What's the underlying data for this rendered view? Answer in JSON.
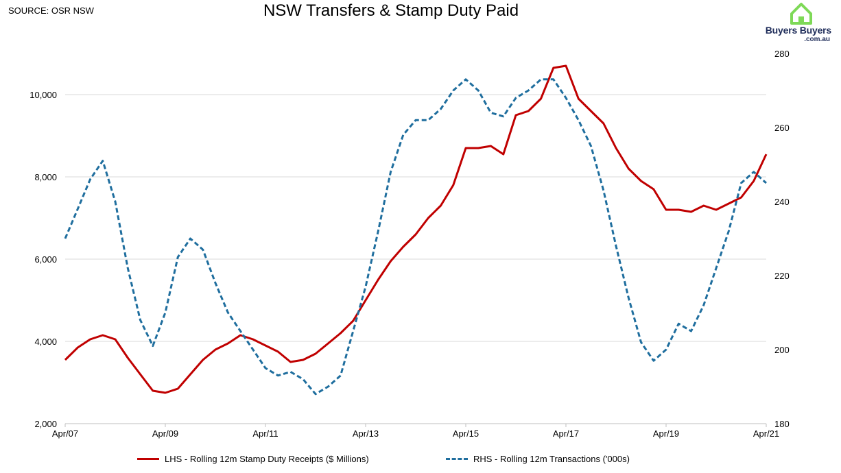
{
  "source": "SOURCE: OSR NSW",
  "title": "NSW Transfers & Stamp Duty Paid",
  "logo": {
    "name": "Buyers Buyers",
    "sub": ".com.au",
    "colors": {
      "house": "#7ed957",
      "text": "#1f2d5a"
    }
  },
  "chart_data": {
    "type": "line",
    "grid": "horizontal",
    "legend_position": "bottom",
    "x_ticks": [
      "Apr/07",
      "Apr/09",
      "Apr/11",
      "Apr/13",
      "Apr/15",
      "Apr/17",
      "Apr/19",
      "Apr/21"
    ],
    "x_range": [
      2007.25,
      2021.25
    ],
    "y_left": {
      "ticks": [
        "2,000",
        "4,000",
        "6,000",
        "8,000",
        "10,000"
      ],
      "ylim": [
        2000,
        10000
      ]
    },
    "y_right": {
      "ticks": [
        "180",
        "200",
        "220",
        "240",
        "260",
        "280"
      ],
      "ylim": [
        180,
        280
      ]
    },
    "series": [
      {
        "name": "LHS - Rolling 12m Stamp Duty Receipts ($ Millions)",
        "axis": "left",
        "color": "#c00000",
        "style": "solid",
        "x": [
          2007.25,
          2007.5,
          2007.75,
          2008.0,
          2008.25,
          2008.5,
          2008.75,
          2009.0,
          2009.25,
          2009.5,
          2009.75,
          2010.0,
          2010.25,
          2010.5,
          2010.75,
          2011.0,
          2011.25,
          2011.5,
          2011.75,
          2012.0,
          2012.25,
          2012.5,
          2012.75,
          2013.0,
          2013.25,
          2013.5,
          2013.75,
          2014.0,
          2014.25,
          2014.5,
          2014.75,
          2015.0,
          2015.25,
          2015.5,
          2015.75,
          2016.0,
          2016.25,
          2016.5,
          2016.75,
          2017.0,
          2017.25,
          2017.5,
          2017.75,
          2018.0,
          2018.25,
          2018.5,
          2018.75,
          2019.0,
          2019.25,
          2019.5,
          2019.75,
          2020.0,
          2020.25,
          2020.5,
          2020.75,
          2021.0,
          2021.25
        ],
        "y": [
          3550,
          3850,
          4050,
          4150,
          4050,
          3600,
          3200,
          2800,
          2750,
          2850,
          3200,
          3550,
          3800,
          3950,
          4150,
          4050,
          3900,
          3750,
          3500,
          3550,
          3700,
          3950,
          4200,
          4500,
          5000,
          5500,
          5950,
          6300,
          6600,
          7000,
          7300,
          7800,
          8700,
          8700,
          8750,
          8550,
          9500,
          9600,
          9900,
          10650,
          10700,
          9900,
          9600,
          9300,
          8700,
          8200,
          7900,
          7700,
          7200,
          7200,
          7150,
          7300,
          7200,
          7350,
          7500,
          7900,
          8550
        ]
      },
      {
        "name": "RHS - Rolling 12m Transactions ('000s)",
        "axis": "right",
        "color": "#1f6e9e",
        "style": "dashed",
        "x": [
          2007.25,
          2007.5,
          2007.75,
          2008.0,
          2008.25,
          2008.5,
          2008.75,
          2009.0,
          2009.25,
          2009.5,
          2009.75,
          2010.0,
          2010.25,
          2010.5,
          2010.75,
          2011.0,
          2011.25,
          2011.5,
          2011.75,
          2012.0,
          2012.25,
          2012.5,
          2012.75,
          2013.0,
          2013.25,
          2013.5,
          2013.75,
          2014.0,
          2014.25,
          2014.5,
          2014.75,
          2015.0,
          2015.25,
          2015.5,
          2015.75,
          2016.0,
          2016.25,
          2016.5,
          2016.75,
          2017.0,
          2017.25,
          2017.5,
          2017.75,
          2018.0,
          2018.25,
          2018.5,
          2018.75,
          2019.0,
          2019.25,
          2019.5,
          2019.75,
          2020.0,
          2020.25,
          2020.5,
          2020.75,
          2021.0,
          2021.25
        ],
        "y": [
          230,
          238,
          246,
          251,
          240,
          222,
          208,
          201,
          210,
          225,
          230,
          227,
          218,
          210,
          205,
          200,
          195,
          193,
          194,
          192,
          188,
          190,
          193,
          205,
          217,
          232,
          248,
          258,
          262,
          262,
          265,
          270,
          273,
          270,
          264,
          263,
          268,
          270,
          273,
          273,
          268,
          262,
          255,
          243,
          228,
          214,
          202,
          197,
          200,
          207,
          205,
          212,
          222,
          232,
          245,
          248,
          245
        ]
      }
    ]
  }
}
